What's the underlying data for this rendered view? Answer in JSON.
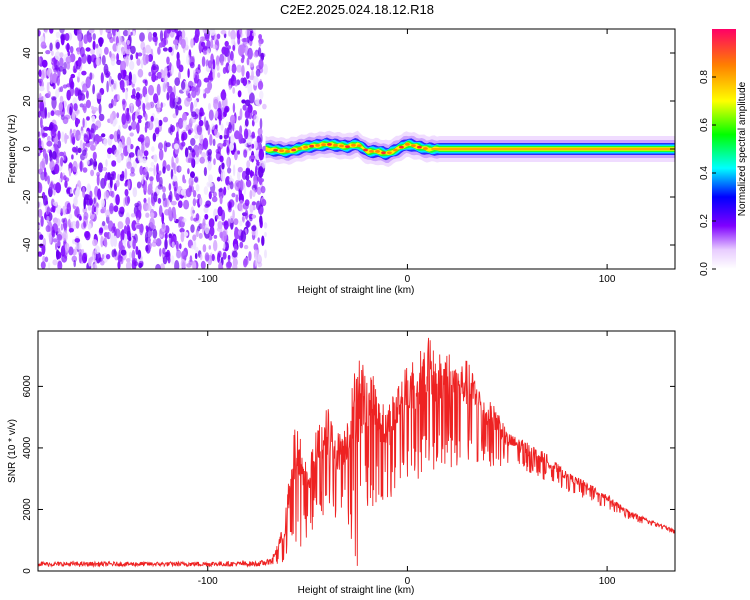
{
  "title": "C2E2.2025.024.18.12.R18",
  "chart_data": [
    {
      "type": "heatmap",
      "xlabel": "Height of straight line (km)",
      "ylabel": "Frequency (Hz)",
      "xlim": [
        -185,
        134
      ],
      "ylim": [
        -50,
        50
      ],
      "xticks": [
        -100,
        0,
        100
      ],
      "yticks": [
        -40,
        -20,
        0,
        20,
        40
      ],
      "colorbar": {
        "label": "Normalized spectral amplitude",
        "range": [
          0,
          1
        ],
        "ticks": [
          "0.0",
          "0.2",
          "0.4",
          "0.6",
          "0.8"
        ],
        "tick_values": [
          0.0,
          0.2,
          0.4,
          0.6,
          0.8
        ]
      },
      "noise_region_x": [
        -185,
        -71
      ],
      "signal_start_x": -71,
      "signal_center_freq": [
        [
          -71,
          0
        ],
        [
          -60,
          -1
        ],
        [
          -50,
          1
        ],
        [
          -40,
          2
        ],
        [
          -30,
          1
        ],
        [
          -25,
          2
        ],
        [
          -20,
          -1
        ],
        [
          -15,
          -1
        ],
        [
          -10,
          -2
        ],
        [
          -5,
          0
        ],
        [
          0,
          2
        ],
        [
          5,
          1
        ],
        [
          10,
          0
        ],
        [
          20,
          0
        ],
        [
          60,
          0
        ],
        [
          100,
          0
        ],
        [
          134,
          0
        ]
      ]
    },
    {
      "type": "line",
      "xlabel": "Height of straight line (km)",
      "ylabel": "SNR (10 * v/v)",
      "xlim": [
        -185,
        134
      ],
      "ylim": [
        0,
        7800
      ],
      "xticks": [
        -100,
        0,
        100
      ],
      "yticks": [
        0,
        2000,
        4000,
        6000
      ],
      "color": "#ee2222",
      "envelope": [
        [
          -185,
          300
        ],
        [
          -120,
          300
        ],
        [
          -75,
          320
        ],
        [
          -68,
          400
        ],
        [
          -62,
          1500
        ],
        [
          -56,
          4900
        ],
        [
          -50,
          3500
        ],
        [
          -45,
          4800
        ],
        [
          -40,
          5400
        ],
        [
          -35,
          4500
        ],
        [
          -30,
          5200
        ],
        [
          -25,
          7300
        ],
        [
          -20,
          6800
        ],
        [
          -15,
          6000
        ],
        [
          -10,
          5400
        ],
        [
          -5,
          6200
        ],
        [
          0,
          6700
        ],
        [
          5,
          7200
        ],
        [
          10,
          7700
        ],
        [
          15,
          7000
        ],
        [
          20,
          7300
        ],
        [
          25,
          6700
        ],
        [
          30,
          6900
        ],
        [
          35,
          6200
        ],
        [
          40,
          5600
        ],
        [
          45,
          5300
        ],
        [
          50,
          4500
        ],
        [
          60,
          4200
        ],
        [
          70,
          3800
        ],
        [
          80,
          3200
        ],
        [
          90,
          2900
        ],
        [
          100,
          2500
        ],
        [
          110,
          2000
        ],
        [
          120,
          1700
        ],
        [
          134,
          1350
        ]
      ],
      "lower": [
        [
          -185,
          150
        ],
        [
          -75,
          150
        ],
        [
          -68,
          200
        ],
        [
          -60,
          200
        ],
        [
          -50,
          1100
        ],
        [
          -40,
          1600
        ],
        [
          -30,
          1600
        ],
        [
          -25,
          100
        ],
        [
          -20,
          2100
        ],
        [
          -10,
          2100
        ],
        [
          0,
          3000
        ],
        [
          10,
          3000
        ],
        [
          20,
          3300
        ],
        [
          30,
          3500
        ],
        [
          40,
          3400
        ],
        [
          50,
          3400
        ],
        [
          60,
          3200
        ],
        [
          70,
          2900
        ],
        [
          80,
          2600
        ],
        [
          90,
          2300
        ],
        [
          100,
          2000
        ],
        [
          110,
          1700
        ],
        [
          120,
          1500
        ],
        [
          134,
          1200
        ]
      ]
    }
  ]
}
